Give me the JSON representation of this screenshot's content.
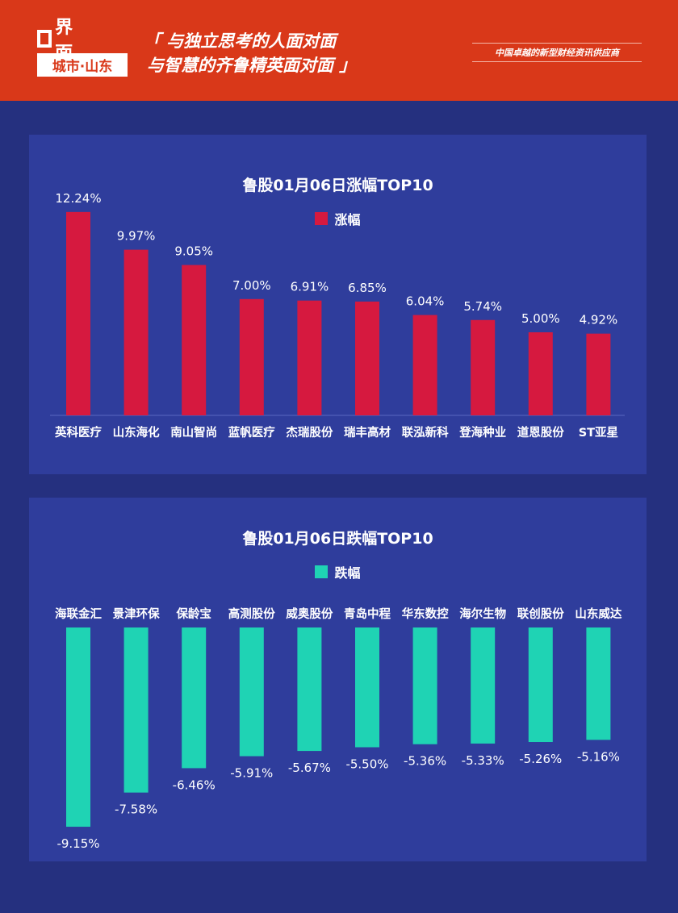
{
  "header": {
    "logo_text": "界面",
    "logo_sub": "城市·山东",
    "slogan_line1": "「 与独立思考的人面对面",
    "slogan_line2": "与智慧的齐鲁精英面对面 」",
    "tagline": "中国卓越的新型财经资讯供应商"
  },
  "colors": {
    "rise": "#d6193f",
    "fall": "#1fd3b4"
  },
  "chart_data": [
    {
      "type": "bar",
      "title": "鲁股01月06日涨幅TOP10",
      "legend": "涨幅",
      "categories": [
        "英科医疗",
        "山东海化",
        "南山智尚",
        "蓝帆医疗",
        "杰瑞股份",
        "瑞丰高材",
        "联泓新科",
        "登海种业",
        "道恩股份",
        "ST亚星"
      ],
      "values": [
        12.24,
        9.97,
        9.05,
        7.0,
        6.91,
        6.85,
        6.04,
        5.74,
        5.0,
        4.92
      ],
      "labels": [
        "12.24%",
        "9.97%",
        "9.05%",
        "7.00%",
        "6.91%",
        "6.85%",
        "6.04%",
        "5.74%",
        "5.00%",
        "4.92%"
      ],
      "unit": "%"
    },
    {
      "type": "bar",
      "title": "鲁股01月06日跌幅TOP10",
      "legend": "跌幅",
      "categories": [
        "海联金汇",
        "景津环保",
        "保龄宝",
        "高测股份",
        "威奥股份",
        "青岛中程",
        "华东数控",
        "海尔生物",
        "联创股份",
        "山东威达"
      ],
      "values": [
        -9.15,
        -7.58,
        -6.46,
        -5.91,
        -5.67,
        -5.5,
        -5.36,
        -5.33,
        -5.26,
        -5.16
      ],
      "labels": [
        "-9.15%",
        "-7.58%",
        "-6.46%",
        "-5.91%",
        "-5.67%",
        "-5.50%",
        "-5.36%",
        "-5.33%",
        "-5.26%",
        "-5.16%"
      ],
      "unit": "%"
    }
  ]
}
